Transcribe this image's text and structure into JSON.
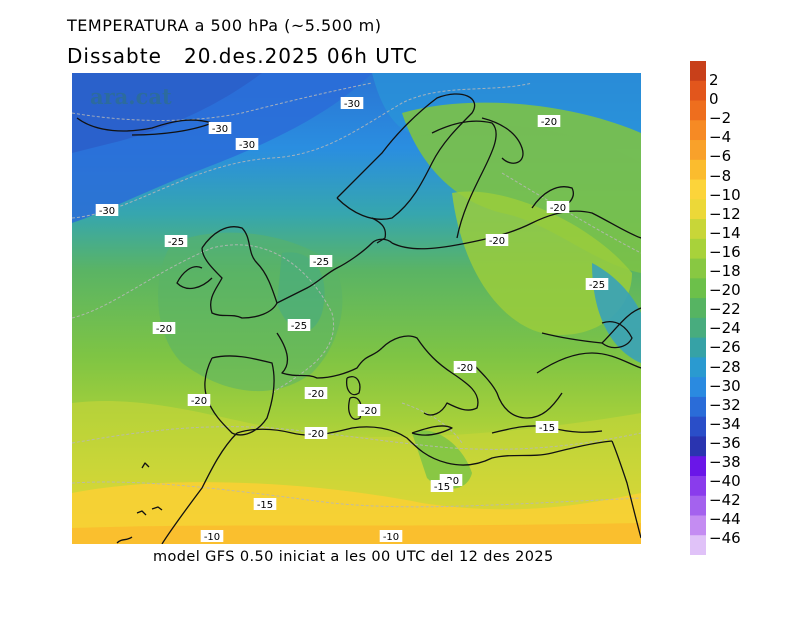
{
  "header": {
    "title": "TEMPERATURA a 500 hPa (~5.500 m)",
    "subtitle_day": "Dissabte",
    "subtitle_date": "20.des.2025 06h UTC"
  },
  "watermark": "ara.cat",
  "footer": "model GFS 0.50 iniciat a les 00 UTC del 12 des 2025",
  "legend": {
    "labels": [
      "2",
      "0",
      "−2",
      "−4",
      "−6",
      "−8",
      "−10",
      "−12",
      "−14",
      "−16",
      "−18",
      "−20",
      "−22",
      "−24",
      "−26",
      "−28",
      "−30",
      "−32",
      "−34",
      "−36",
      "−38",
      "−40",
      "−42",
      "−44",
      "−46"
    ],
    "colors": [
      "#c8401a",
      "#e2561c",
      "#ee6e1e",
      "#f68a24",
      "#f9a12a",
      "#fbbc2e",
      "#fcd43a",
      "#ecd838",
      "#c8d638",
      "#a8d23a",
      "#88c842",
      "#6cc04a",
      "#56b462",
      "#48ac7e",
      "#36a2a6",
      "#2a9ad0",
      "#2a8ae0",
      "#2a6cd8",
      "#2a4ec8",
      "#2a34b0",
      "#6a16e8",
      "#8a3cec",
      "#a462ee",
      "#c48cf2",
      "#e0c2f8"
    ]
  },
  "contour_labels": [
    {
      "text": "-30"
    },
    {
      "text": "-30"
    },
    {
      "text": "-30"
    },
    {
      "text": "-30"
    },
    {
      "text": "-25"
    },
    {
      "text": "-25"
    },
    {
      "text": "-25"
    },
    {
      "text": "-25"
    },
    {
      "text": "-20"
    },
    {
      "text": "-20"
    },
    {
      "text": "-20"
    },
    {
      "text": "-20"
    },
    {
      "text": "-20"
    },
    {
      "text": "-20"
    },
    {
      "text": "-20"
    },
    {
      "text": "-20"
    },
    {
      "text": "-20"
    },
    {
      "text": "-20"
    },
    {
      "text": "-15"
    },
    {
      "text": "-15"
    },
    {
      "text": "-15"
    },
    {
      "text": "-10"
    },
    {
      "text": "-10"
    }
  ]
}
